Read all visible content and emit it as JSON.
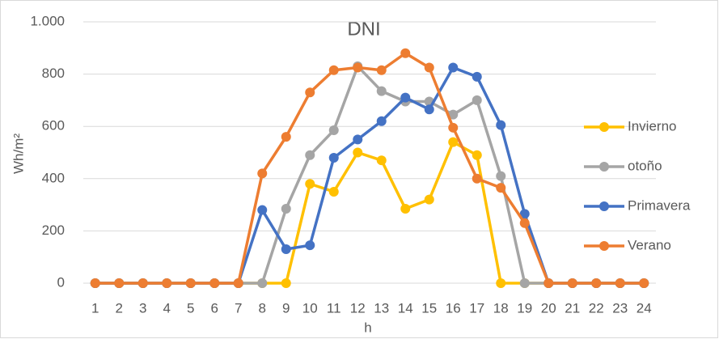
{
  "chart_data": {
    "type": "line",
    "title": "DNI",
    "x_label": "h",
    "y_label": "Wh/m²",
    "categories": [
      "1",
      "2",
      "3",
      "4",
      "5",
      "6",
      "7",
      "8",
      "9",
      "10",
      "11",
      "12",
      "13",
      "14",
      "15",
      "16",
      "17",
      "18",
      "19",
      "20",
      "21",
      "22",
      "23",
      "24"
    ],
    "series": [
      {
        "name": "Invierno",
        "color": "#ffc000",
        "values": [
          0,
          0,
          0,
          0,
          0,
          0,
          0,
          0,
          0,
          380,
          350,
          500,
          470,
          285,
          320,
          540,
          490,
          0,
          0,
          0,
          0,
          0,
          0,
          0
        ]
      },
      {
        "name": "otoño",
        "color": "#a5a5a5",
        "values": [
          0,
          0,
          0,
          0,
          0,
          0,
          0,
          0,
          285,
          490,
          585,
          830,
          735,
          695,
          695,
          645,
          700,
          410,
          0,
          0,
          0,
          0,
          0,
          0
        ]
      },
      {
        "name": "Primavera",
        "color": "#4472c4",
        "values": [
          0,
          0,
          0,
          0,
          0,
          0,
          0,
          280,
          130,
          145,
          480,
          550,
          620,
          710,
          665,
          825,
          790,
          605,
          265,
          0,
          0,
          0,
          0,
          0
        ]
      },
      {
        "name": "Verano",
        "color": "#ed7d31",
        "values": [
          0,
          0,
          0,
          0,
          0,
          0,
          0,
          420,
          560,
          730,
          815,
          825,
          815,
          880,
          825,
          595,
          400,
          365,
          230,
          0,
          0,
          0,
          0,
          0
        ]
      }
    ],
    "ylim": [
      0,
      1000
    ],
    "yticks": [
      0,
      200,
      400,
      600,
      800,
      {
        "value": 1000,
        "label": "1.000"
      }
    ],
    "grid": true,
    "legend": "right"
  }
}
